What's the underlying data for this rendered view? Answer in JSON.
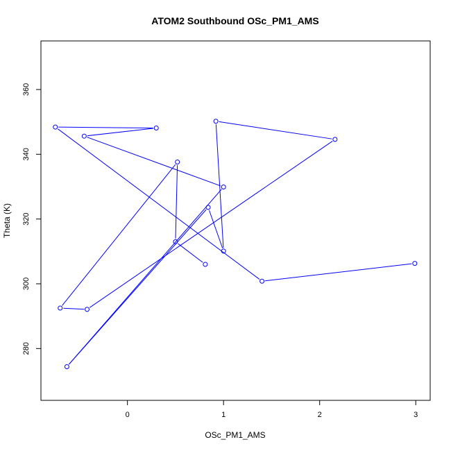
{
  "chart_data": {
    "type": "line",
    "title": "ATOM2 Southbound OSc_PM1_AMS",
    "xlabel": "OSc_PM1_AMS",
    "ylabel": "Theta (K)",
    "xlim": [
      -0.9,
      3.15
    ],
    "ylim": [
      264,
      375
    ],
    "xticks": [
      0,
      1,
      2,
      3
    ],
    "yticks": [
      280,
      300,
      320,
      340,
      360
    ],
    "series_color": "#0000ff",
    "markers": "open-circle",
    "grid": false,
    "legend": "none",
    "points": [
      {
        "x": 0.81,
        "y": 306.0
      },
      {
        "x": 0.5,
        "y": 313.0
      },
      {
        "x": 0.52,
        "y": 337.6
      },
      {
        "x": -0.7,
        "y": 292.5
      },
      {
        "x": -0.42,
        "y": 292.1
      },
      {
        "x": 2.16,
        "y": 344.6
      },
      {
        "x": 0.92,
        "y": 350.2
      },
      {
        "x": 1.0,
        "y": 310.1
      },
      {
        "x": 0.84,
        "y": 323.6
      },
      {
        "x": -0.63,
        "y": 274.4
      },
      {
        "x": 1.0,
        "y": 329.9
      },
      {
        "x": -0.45,
        "y": 345.6
      },
      {
        "x": 0.3,
        "y": 348.1
      },
      {
        "x": -0.75,
        "y": 348.4
      },
      {
        "x": 1.4,
        "y": 300.8
      },
      {
        "x": 2.99,
        "y": 306.3
      }
    ]
  }
}
